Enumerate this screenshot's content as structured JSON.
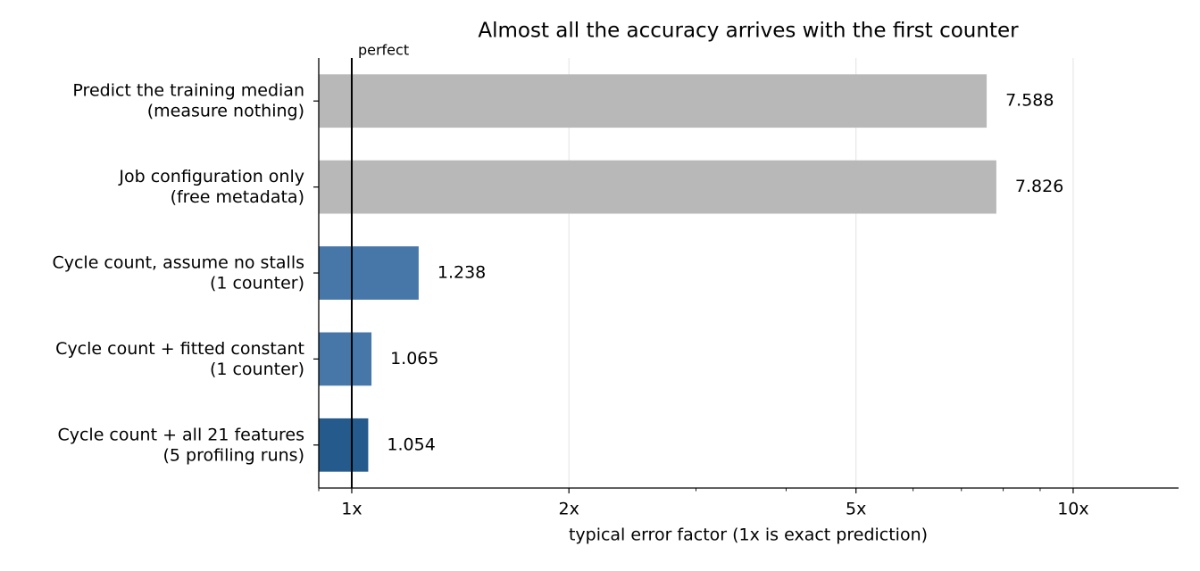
{
  "chart_data": {
    "type": "barh",
    "title": "Almost all the accuracy arrives with the first counter",
    "xlabel": "typical error factor (1x is exact prediction)",
    "categories": [
      [
        "Predict the training median",
        "(measure nothing)"
      ],
      [
        "Job configuration only",
        "(free metadata)"
      ],
      [
        "Cycle count, assume no stalls",
        "(1 counter)"
      ],
      [
        "Cycle count + fitted constant",
        "(1 counter)"
      ],
      [
        "Cycle count + all 21 features",
        "(5 profiling runs)"
      ]
    ],
    "values": [
      7.588,
      7.826,
      1.238,
      1.065,
      1.054
    ],
    "colors": [
      "#b8b8b8",
      "#b8b8b8",
      "#4677a8",
      "#4677a8",
      "#245a8c"
    ],
    "xscale": "log",
    "xlim": [
      0.9,
      14
    ],
    "xticks": [
      {
        "value": 1,
        "label": "1x"
      },
      {
        "value": 2,
        "label": "2x"
      },
      {
        "value": 5,
        "label": "5x"
      },
      {
        "value": 10,
        "label": "10x"
      }
    ],
    "xminorticks": [
      0.9,
      3,
      4,
      6,
      7,
      8,
      9
    ],
    "grid": true,
    "reference_line": {
      "value": 1,
      "label": "perfect"
    }
  }
}
